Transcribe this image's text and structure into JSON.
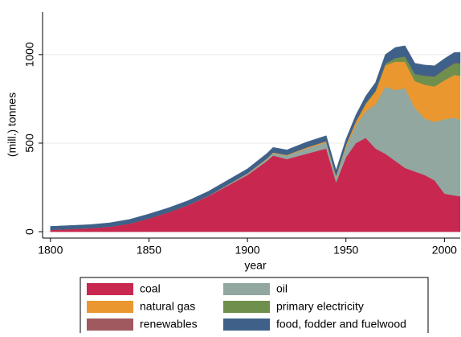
{
  "chart_data": {
    "type": "stacked-area",
    "y_label": "(mill.) tonnes",
    "x_label": "year",
    "x": [
      1800,
      1810,
      1820,
      1830,
      1840,
      1850,
      1860,
      1870,
      1880,
      1890,
      1900,
      1910,
      1913,
      1920,
      1930,
      1940,
      1945,
      1950,
      1955,
      1960,
      1965,
      1970,
      1975,
      1980,
      1985,
      1990,
      1995,
      2000,
      2005,
      2008
    ],
    "series": [
      {
        "name": "coal",
        "color": "#c8284f",
        "values": [
          10,
          15,
          20,
          28,
          45,
          75,
          110,
          150,
          200,
          260,
          320,
          400,
          430,
          410,
          440,
          470,
          280,
          420,
          500,
          530,
          470,
          440,
          400,
          360,
          340,
          320,
          290,
          215,
          205,
          200
        ]
      },
      {
        "name": "oil",
        "color": "#91a79f",
        "values": [
          0,
          0,
          0,
          0,
          0,
          0,
          0,
          1,
          2,
          5,
          8,
          12,
          15,
          20,
          30,
          35,
          30,
          60,
          100,
          150,
          250,
          380,
          400,
          450,
          360,
          320,
          330,
          420,
          440,
          430
        ]
      },
      {
        "name": "natural gas",
        "color": "#ea972f",
        "values": [
          0,
          0,
          0,
          0,
          0,
          0,
          0,
          0,
          0,
          1,
          2,
          3,
          3,
          4,
          5,
          6,
          6,
          10,
          20,
          40,
          70,
          120,
          160,
          150,
          150,
          190,
          200,
          220,
          240,
          250
        ]
      },
      {
        "name": "primary electricity",
        "color": "#6f8f4c",
        "values": [
          0,
          0,
          0,
          0,
          0,
          0,
          0,
          0,
          0,
          0,
          0,
          0,
          0,
          0,
          1,
          1,
          1,
          2,
          3,
          5,
          7,
          10,
          20,
          30,
          40,
          50,
          55,
          60,
          65,
          70
        ]
      },
      {
        "name": "renewables",
        "color": "#a0595e",
        "values": [
          0,
          0,
          0,
          0,
          0,
          0,
          0,
          0,
          0,
          0,
          0,
          0,
          0,
          0,
          0,
          0,
          0,
          0,
          0,
          0,
          0,
          0,
          0,
          0,
          1,
          1,
          2,
          2,
          2,
          3
        ]
      },
      {
        "name": "food, fodder and fuelwood",
        "color": "#3f6189",
        "values": [
          20,
          20,
          20,
          22,
          24,
          25,
          25,
          25,
          25,
          25,
          25,
          28,
          28,
          28,
          30,
          30,
          30,
          30,
          35,
          40,
          45,
          50,
          60,
          60,
          60,
          60,
          60,
          60,
          60,
          60
        ]
      }
    ],
    "xlim": [
      1796,
      2008
    ],
    "ylim": [
      -36,
      1240
    ],
    "xticks": [
      1800,
      1850,
      1900,
      1950,
      2000
    ],
    "yticks": [
      0,
      500,
      1000
    ],
    "grid": true,
    "legend_position": "bottom"
  }
}
